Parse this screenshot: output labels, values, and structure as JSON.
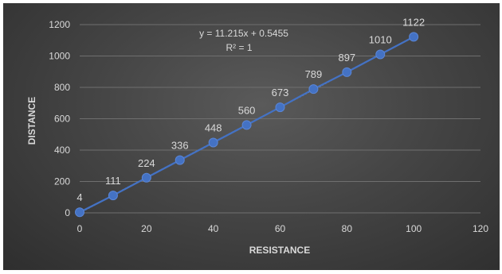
{
  "chart_data": {
    "type": "scatter",
    "title": "",
    "xlabel": "RESISTANCE",
    "ylabel": "DISTANCE",
    "xlim": [
      0,
      120
    ],
    "ylim": [
      0,
      1200
    ],
    "x_ticks": [
      0,
      20,
      40,
      60,
      80,
      100,
      120
    ],
    "y_ticks": [
      0,
      200,
      400,
      600,
      800,
      1000,
      1200
    ],
    "grid": "horizontal",
    "series": [
      {
        "x": [
          0,
          10,
          20,
          30,
          40,
          50,
          60,
          70,
          80,
          90,
          100
        ],
        "y": [
          4,
          111,
          224,
          336,
          448,
          560,
          673,
          789,
          897,
          1010,
          1122
        ],
        "labels": [
          "4",
          "111",
          "224",
          "336",
          "448",
          "560",
          "673",
          "789",
          "897",
          "1010",
          "1122"
        ],
        "color": "#4472c4"
      }
    ],
    "trendline": {
      "type": "linear",
      "equation": "y = 11.215x + 0.5455",
      "r_squared": "R² = 1",
      "slope": 11.215,
      "intercept": 0.5455,
      "style": "dotted"
    }
  }
}
